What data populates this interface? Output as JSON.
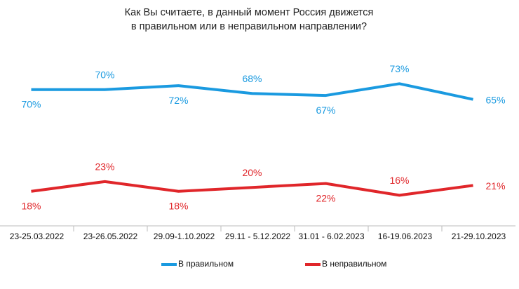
{
  "chart_data": {
    "type": "line",
    "title": [
      "Как Вы считаете, в данный момент Россия движется",
      "в правильном или в неправильном направлении?"
    ],
    "categories": [
      "23-25.03.2022",
      "23-26.05.2022",
      "29.09-1.10.2022",
      "29.11 - 5.12.2022",
      "31.01 - 6.02.2023",
      "16-19.06.2023",
      "21-29.10.2023"
    ],
    "series": [
      {
        "name": "В правильном",
        "color": "#1a9ae0",
        "values": [
          70,
          70,
          72,
          68,
          67,
          73,
          65
        ],
        "value_labels": [
          "70%",
          "70%",
          "72%",
          "68%",
          "67%",
          "73%",
          "65%"
        ]
      },
      {
        "name": "В неправильном",
        "color": "#e0262a",
        "values": [
          18,
          23,
          18,
          20,
          22,
          16,
          21
        ],
        "value_labels": [
          "18%",
          "23%",
          "18%",
          "20%",
          "22%",
          "16%",
          "21%"
        ]
      }
    ]
  }
}
